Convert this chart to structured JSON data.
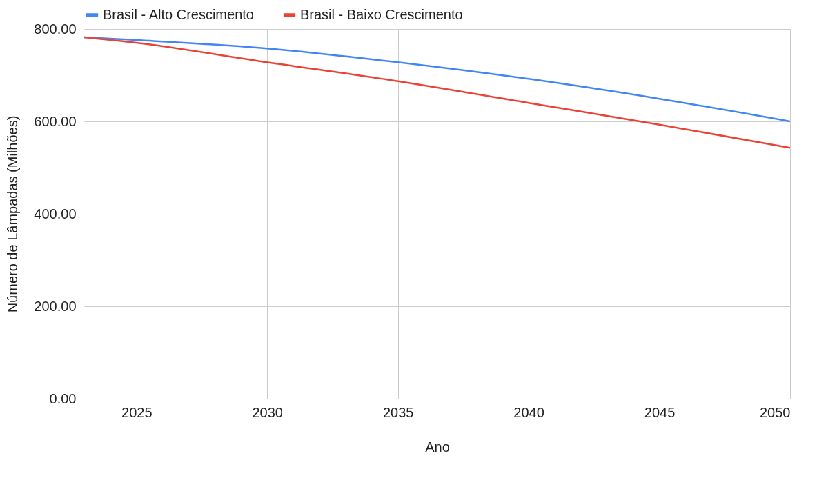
{
  "chart_data": {
    "type": "line",
    "xlabel": "Ano",
    "ylabel": "Número de Lâmpadas (Milhões)",
    "x": [
      2023,
      2025,
      2030,
      2035,
      2040,
      2045,
      2050
    ],
    "series": [
      {
        "name": "Brasil - Alto Crescimento",
        "color": "#4285f4",
        "values": [
          782,
          776,
          758,
          728,
          692,
          649,
          600
        ]
      },
      {
        "name": "Brasil - Baixo Crescimento",
        "color": "#ea4335",
        "values": [
          782,
          770,
          728,
          687,
          640,
          593,
          543
        ]
      }
    ],
    "xlim": [
      2023,
      2050
    ],
    "xticks": [
      2025,
      2030,
      2035,
      2040,
      2045,
      2050
    ],
    "ylim": [
      0,
      800
    ],
    "yticks": [
      {
        "value": 0,
        "label": "0.00"
      },
      {
        "value": 200,
        "label": "200.00"
      },
      {
        "value": 400,
        "label": "400.00"
      },
      {
        "value": 600,
        "label": "600.00"
      },
      {
        "value": 800,
        "label": "800.00"
      }
    ],
    "grid": true,
    "legend": "top",
    "marker": "none",
    "line_style": "solid"
  }
}
